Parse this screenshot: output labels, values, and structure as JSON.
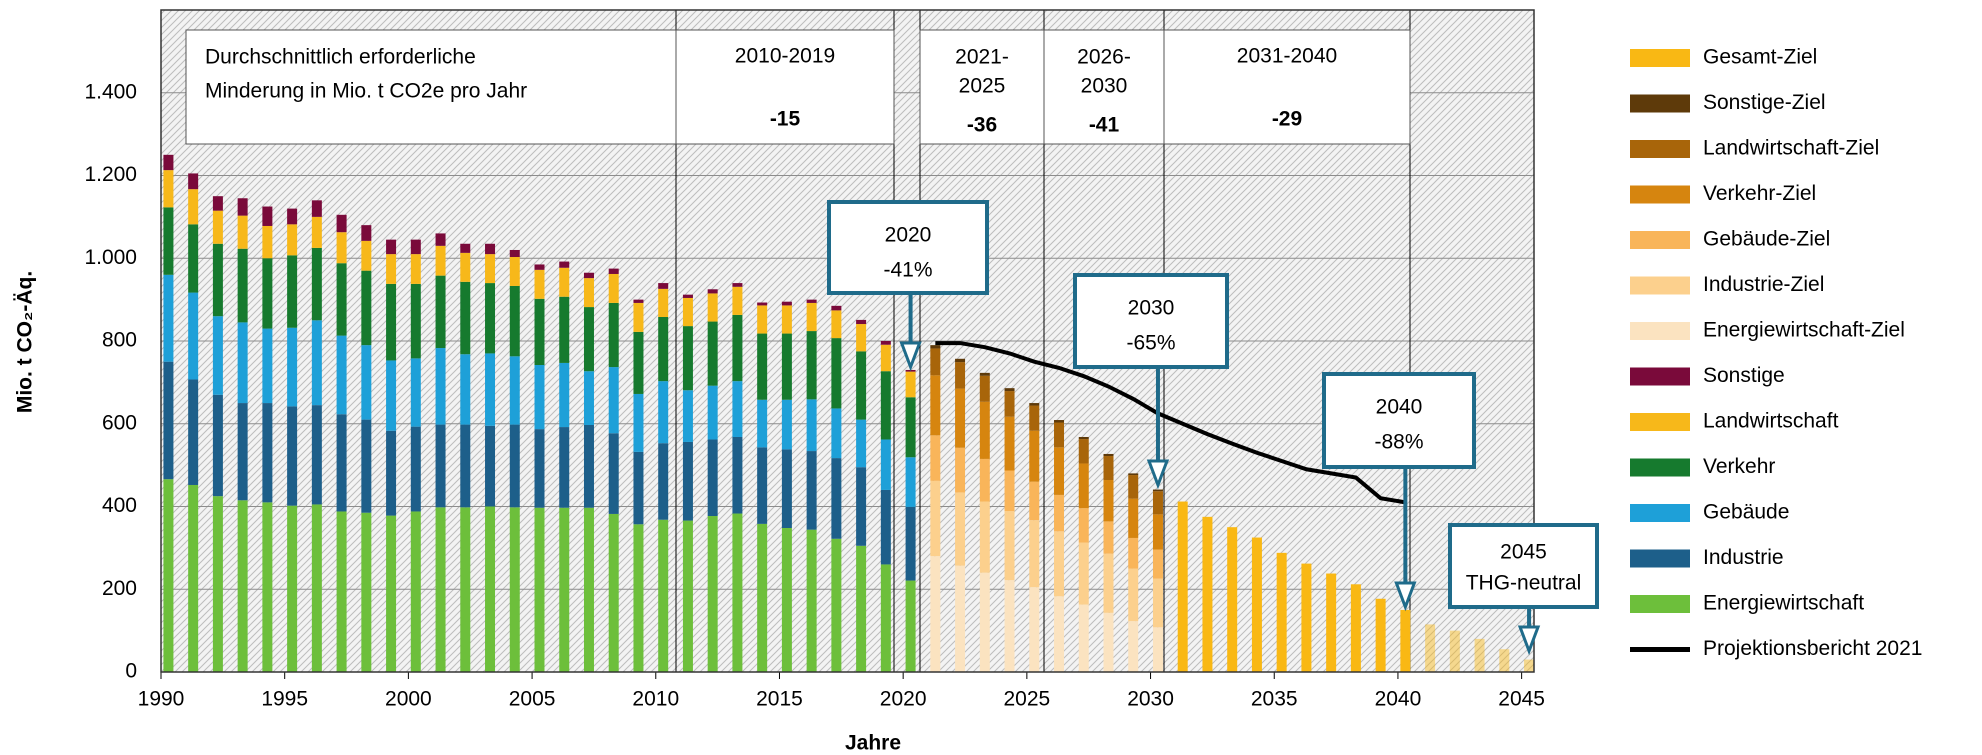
{
  "chart_data": {
    "type": "bar",
    "stacked": true,
    "ylabel": "Mio. t CO₂-Äq.",
    "xlabel": "Jahre",
    "xlim": [
      1990,
      2045.5
    ],
    "xticks": [
      1990,
      1995,
      2000,
      2005,
      2010,
      2015,
      2020,
      2025,
      2030,
      2035,
      2040,
      2045
    ],
    "ylim": [
      0,
      1600
    ],
    "yticks": [
      0,
      200,
      400,
      600,
      800,
      {
        "value": 1000,
        "label": "1.000"
      },
      {
        "value": 1200,
        "label": "1.200"
      },
      {
        "value": 1400,
        "label": "1.400"
      }
    ],
    "grid": true,
    "legend": "right",
    "x": [
      1990,
      1991,
      1992,
      1993,
      1994,
      1995,
      1996,
      1997,
      1998,
      1999,
      2000,
      2001,
      2002,
      2003,
      2004,
      2005,
      2006,
      2007,
      2008,
      2009,
      2010,
      2011,
      2012,
      2013,
      2014,
      2015,
      2016,
      2017,
      2018,
      2019,
      2020,
      2021,
      2022,
      2023,
      2024,
      2025,
      2026,
      2027,
      2028,
      2029,
      2030,
      2031,
      2032,
      2033,
      2034,
      2035,
      2036,
      2037,
      2038,
      2039,
      2040,
      2041,
      2042,
      2043,
      2044,
      2045
    ],
    "series": [
      {
        "name": "Energiewirtschaft",
        "color": "#6dbf3b",
        "values": [
          466,
          452,
          425,
          415,
          410,
          402,
          405,
          388,
          385,
          378,
          388,
          398,
          398,
          400,
          398,
          397,
          397,
          397,
          382,
          357,
          368,
          366,
          377,
          383,
          358,
          348,
          344,
          322,
          305,
          260,
          221,
          null,
          null,
          null,
          null,
          null,
          null,
          null,
          null,
          null,
          null,
          null,
          null,
          null,
          null,
          null,
          null,
          null,
          null,
          null,
          null,
          null,
          null,
          null,
          null,
          null
        ]
      },
      {
        "name": "Industrie",
        "color": "#1d5f8a",
        "values": [
          284,
          255,
          245,
          235,
          240,
          240,
          240,
          235,
          225,
          205,
          205,
          200,
          200,
          195,
          200,
          190,
          195,
          200,
          195,
          175,
          185,
          190,
          185,
          185,
          185,
          190,
          190,
          195,
          190,
          180,
          178,
          null,
          null,
          null,
          null,
          null,
          null,
          null,
          null,
          null,
          null,
          null,
          null,
          null,
          null,
          null,
          null,
          null,
          null,
          null,
          null,
          null,
          null,
          null,
          null,
          null
        ]
      },
      {
        "name": "Gebäude",
        "color": "#1ea0d8",
        "values": [
          210,
          210,
          190,
          195,
          180,
          190,
          205,
          190,
          180,
          170,
          165,
          185,
          170,
          175,
          165,
          155,
          155,
          130,
          160,
          140,
          150,
          125,
          130,
          135,
          115,
          120,
          125,
          120,
          115,
          122,
          120,
          null,
          null,
          null,
          null,
          null,
          null,
          null,
          null,
          null,
          null,
          null,
          null,
          null,
          null,
          null,
          null,
          null,
          null,
          null,
          null,
          null,
          null,
          null,
          null,
          null
        ]
      },
      {
        "name": "Verkehr",
        "color": "#167a2e",
        "values": [
          163,
          165,
          175,
          178,
          170,
          175,
          175,
          175,
          180,
          185,
          180,
          175,
          175,
          170,
          170,
          160,
          160,
          155,
          155,
          150,
          155,
          155,
          155,
          160,
          160,
          160,
          165,
          170,
          165,
          165,
          145,
          null,
          null,
          null,
          null,
          null,
          null,
          null,
          null,
          null,
          null,
          null,
          null,
          null,
          null,
          null,
          null,
          null,
          null,
          null,
          null,
          null,
          null,
          null,
          null,
          null
        ]
      },
      {
        "name": "Landwirtschaft",
        "color": "#f7b81a",
        "values": [
          90,
          85,
          80,
          80,
          78,
          75,
          75,
          75,
          72,
          72,
          72,
          72,
          70,
          70,
          70,
          70,
          70,
          70,
          70,
          70,
          68,
          68,
          68,
          68,
          68,
          68,
          68,
          67,
          66,
          64,
          62,
          null,
          null,
          null,
          null,
          null,
          null,
          null,
          null,
          null,
          null,
          null,
          null,
          null,
          null,
          null,
          null,
          null,
          null,
          null,
          null,
          null,
          null,
          null,
          null,
          null
        ]
      },
      {
        "name": "Sonstige",
        "color": "#7a0a3a",
        "values": [
          37,
          38,
          35,
          42,
          47,
          38,
          40,
          42,
          38,
          35,
          35,
          30,
          22,
          25,
          17,
          13,
          15,
          13,
          13,
          8,
          14,
          8,
          10,
          9,
          7,
          9,
          8,
          11,
          10,
          9,
          4,
          null,
          null,
          null,
          null,
          null,
          null,
          null,
          null,
          null,
          null,
          null,
          null,
          null,
          null,
          null,
          null,
          null,
          null,
          null,
          null,
          null,
          null,
          null,
          null,
          null
        ]
      },
      {
        "name": "Energiewirtschaft-Ziel",
        "color": "#fbe3c0",
        "values": [
          null,
          null,
          null,
          null,
          null,
          null,
          null,
          null,
          null,
          null,
          null,
          null,
          null,
          null,
          null,
          null,
          null,
          null,
          null,
          null,
          null,
          null,
          null,
          null,
          null,
          null,
          null,
          null,
          null,
          null,
          null,
          280,
          257,
          240,
          222,
          205,
          183,
          163,
          143,
          123,
          108,
          null,
          null,
          null,
          null,
          null,
          null,
          null,
          null,
          null,
          null,
          null,
          null,
          null,
          null,
          null
        ]
      },
      {
        "name": "Industrie-Ziel",
        "color": "#fcd08d",
        "values": [
          null,
          null,
          null,
          null,
          null,
          null,
          null,
          null,
          null,
          null,
          null,
          null,
          null,
          null,
          null,
          null,
          null,
          null,
          null,
          null,
          null,
          null,
          null,
          null,
          null,
          null,
          null,
          null,
          null,
          null,
          null,
          182,
          177,
          172,
          167,
          162,
          157,
          150,
          143,
          127,
          118,
          null,
          null,
          null,
          null,
          null,
          null,
          null,
          null,
          null,
          null,
          null,
          null,
          null,
          null,
          null
        ]
      },
      {
        "name": "Gebäude-Ziel",
        "color": "#f9b55a",
        "values": [
          null,
          null,
          null,
          null,
          null,
          null,
          null,
          null,
          null,
          null,
          null,
          null,
          null,
          null,
          null,
          null,
          null,
          null,
          null,
          null,
          null,
          null,
          null,
          null,
          null,
          null,
          null,
          null,
          null,
          null,
          null,
          110,
          108,
          103,
          98,
          93,
          88,
          83,
          78,
          74,
          70,
          null,
          null,
          null,
          null,
          null,
          null,
          null,
          null,
          null,
          null,
          null,
          null,
          null,
          null,
          null
        ]
      },
      {
        "name": "Verkehr-Ziel",
        "color": "#d6850f",
        "values": [
          null,
          null,
          null,
          null,
          null,
          null,
          null,
          null,
          null,
          null,
          null,
          null,
          null,
          null,
          null,
          null,
          null,
          null,
          null,
          null,
          null,
          null,
          null,
          null,
          null,
          null,
          null,
          null,
          null,
          null,
          null,
          145,
          143,
          138,
          130,
          123,
          115,
          108,
          100,
          95,
          85,
          null,
          null,
          null,
          null,
          null,
          null,
          null,
          null,
          null,
          null,
          null,
          null,
          null,
          null,
          null
        ]
      },
      {
        "name": "Landwirtschaft-Ziel",
        "color": "#a8650a",
        "values": [
          null,
          null,
          null,
          null,
          null,
          null,
          null,
          null,
          null,
          null,
          null,
          null,
          null,
          null,
          null,
          null,
          null,
          null,
          null,
          null,
          null,
          null,
          null,
          null,
          null,
          null,
          null,
          null,
          null,
          null,
          null,
          65,
          64,
          63,
          62,
          61,
          60,
          59,
          58,
          57,
          56,
          null,
          null,
          null,
          null,
          null,
          null,
          null,
          null,
          null,
          null,
          null,
          null,
          null,
          null,
          null
        ]
      },
      {
        "name": "Sonstige-Ziel",
        "color": "#5e3a0a",
        "values": [
          null,
          null,
          null,
          null,
          null,
          null,
          null,
          null,
          null,
          null,
          null,
          null,
          null,
          null,
          null,
          null,
          null,
          null,
          null,
          null,
          null,
          null,
          null,
          null,
          null,
          null,
          null,
          null,
          null,
          null,
          null,
          8,
          8,
          7,
          7,
          6,
          6,
          5,
          5,
          4,
          4,
          null,
          null,
          null,
          null,
          null,
          null,
          null,
          null,
          null,
          null,
          null,
          null,
          null,
          null,
          null
        ]
      },
      {
        "name": "Gesamt-Ziel",
        "color": "#f9b814",
        "values": [
          null,
          null,
          null,
          null,
          null,
          null,
          null,
          null,
          null,
          null,
          null,
          null,
          null,
          null,
          null,
          null,
          null,
          null,
          null,
          null,
          null,
          null,
          null,
          null,
          null,
          null,
          null,
          null,
          null,
          null,
          null,
          null,
          null,
          null,
          null,
          null,
          null,
          null,
          null,
          null,
          null,
          412,
          375,
          350,
          325,
          288,
          262,
          238,
          212,
          177,
          150,
          115,
          100,
          80,
          55,
          30
        ]
      },
      {
        "name": "Projektionsbericht 2021",
        "color": "#000000",
        "type": "line",
        "values": [
          null,
          null,
          null,
          null,
          null,
          null,
          null,
          null,
          null,
          null,
          null,
          null,
          null,
          null,
          null,
          null,
          null,
          null,
          null,
          null,
          null,
          null,
          null,
          null,
          null,
          null,
          null,
          null,
          null,
          null,
          null,
          795,
          795,
          785,
          770,
          750,
          735,
          715,
          690,
          660,
          625,
          600,
          575,
          552,
          530,
          510,
          490,
          480,
          470,
          420,
          410,
          null,
          null,
          null,
          null,
          null
        ]
      }
    ],
    "table": {
      "label": [
        "Durchschnittlich erforderliche",
        "Minderung in Mio. t CO2e pro Jahr"
      ],
      "columns": [
        {
          "period": [
            "2010-2019"
          ],
          "value": -15
        },
        {
          "period": [
            "2021-",
            "2025"
          ],
          "value": -36
        },
        {
          "period": [
            "2026-",
            "2030"
          ],
          "value": -41
        },
        {
          "period": [
            "2031-2040"
          ],
          "value": -29
        }
      ]
    },
    "annotations": [
      {
        "x": 2020,
        "lines": [
          "2020",
          "-41%"
        ]
      },
      {
        "x": 2030,
        "lines": [
          "2030",
          "-65%"
        ]
      },
      {
        "x": 2040,
        "lines": [
          "2040",
          "-88%"
        ]
      },
      {
        "x": 2045,
        "lines": [
          "2045",
          "THG-neutral"
        ]
      }
    ]
  }
}
